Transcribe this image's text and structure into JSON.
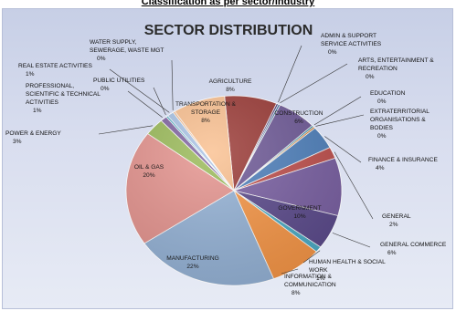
{
  "page": {
    "heading": "Classification as per sector/industry"
  },
  "chart_data": {
    "type": "pie",
    "title": "SECTOR DISTRIBUTION",
    "legend": "none",
    "slices": [
      {
        "name_lines": [
          "AGRICULTURE"
        ],
        "pct_text": "8%",
        "value": 8,
        "color": "#9b3a36"
      },
      {
        "name_lines": [
          "ADMIN & SUPPORT",
          "SERVICE ACTIVITIES"
        ],
        "pct_text": "0%",
        "value": 0.3,
        "color": "#4a3a78"
      },
      {
        "name_lines": [
          "ARTS, ENTERTAINMENT &",
          "RECREATION"
        ],
        "pct_text": "0%",
        "value": 0.3,
        "color": "#3b6fa0"
      },
      {
        "name_lines": [
          "CONSTRUCTION"
        ],
        "pct_text": "6%",
        "value": 6,
        "color": "#6f5a98"
      },
      {
        "name_lines": [
          "EDUCATION"
        ],
        "pct_text": "0%",
        "value": 0.3,
        "color": "#2f8aa4"
      },
      {
        "name_lines": [
          "EXTRATERRITORIAL",
          "ORGANISATIONS &",
          "BODIES"
        ],
        "pct_text": "0%",
        "value": 0.3,
        "color": "#d87f2e"
      },
      {
        "name_lines": [
          "FINANCE & INSURANCE"
        ],
        "pct_text": "4%",
        "value": 4,
        "color": "#4f81bd"
      },
      {
        "name_lines": [
          "GENERAL"
        ],
        "pct_text": "2%",
        "value": 2,
        "color": "#c0504d"
      },
      {
        "name_lines": [
          "GOVERNMENT"
        ],
        "pct_text": "10%",
        "value": 10,
        "color": "#7a60a3"
      },
      {
        "name_lines": [
          "GENERAL COMMERCE"
        ],
        "pct_text": "6%",
        "value": 6,
        "color": "#5b4a8c"
      },
      {
        "name_lines": [
          "HUMAN HEALTH & SOCIAL",
          "WORK"
        ],
        "pct_text": "1%",
        "value": 1,
        "color": "#4bacc6"
      },
      {
        "name_lines": [
          "INFORMATION &",
          "COMMUNICATION"
        ],
        "pct_text": "8%",
        "value": 8,
        "color": "#f79646"
      },
      {
        "name_lines": [
          "MANUFACTURING"
        ],
        "pct_text": "22%",
        "value": 22,
        "color": "#95b3d7"
      },
      {
        "name_lines": [
          "OIL & GAS"
        ],
        "pct_text": "20%",
        "value": 20,
        "color": "#e6948f"
      },
      {
        "name_lines": [
          "POWER & ENERGY"
        ],
        "pct_text": "3%",
        "value": 3,
        "color": "#9bbb59"
      },
      {
        "name_lines": [
          "PROFESSIONAL,",
          "SCIENTIFIC & TECHNICAL",
          "ACTIVITIES"
        ],
        "pct_text": "1%",
        "value": 1,
        "color": "#8064a2"
      },
      {
        "name_lines": [
          "PUBLIC UTILITIES"
        ],
        "pct_text": "0%",
        "value": 0.3,
        "color": "#4bacc6"
      },
      {
        "name_lines": [
          "REAL ESTATE ACTIVITIES"
        ],
        "pct_text": "1%",
        "value": 1,
        "color": "#a9c3e6"
      },
      {
        "name_lines": [
          "WATER SUPPLY,",
          "SEWERAGE, WASTE MGT"
        ],
        "pct_text": "0%",
        "value": 0.3,
        "color": "#f5b383"
      },
      {
        "name_lines": [
          "TRANSPORTATION &",
          "STORAGE"
        ],
        "pct_text": "8%",
        "value": 8,
        "color": "#fac090"
      }
    ]
  }
}
